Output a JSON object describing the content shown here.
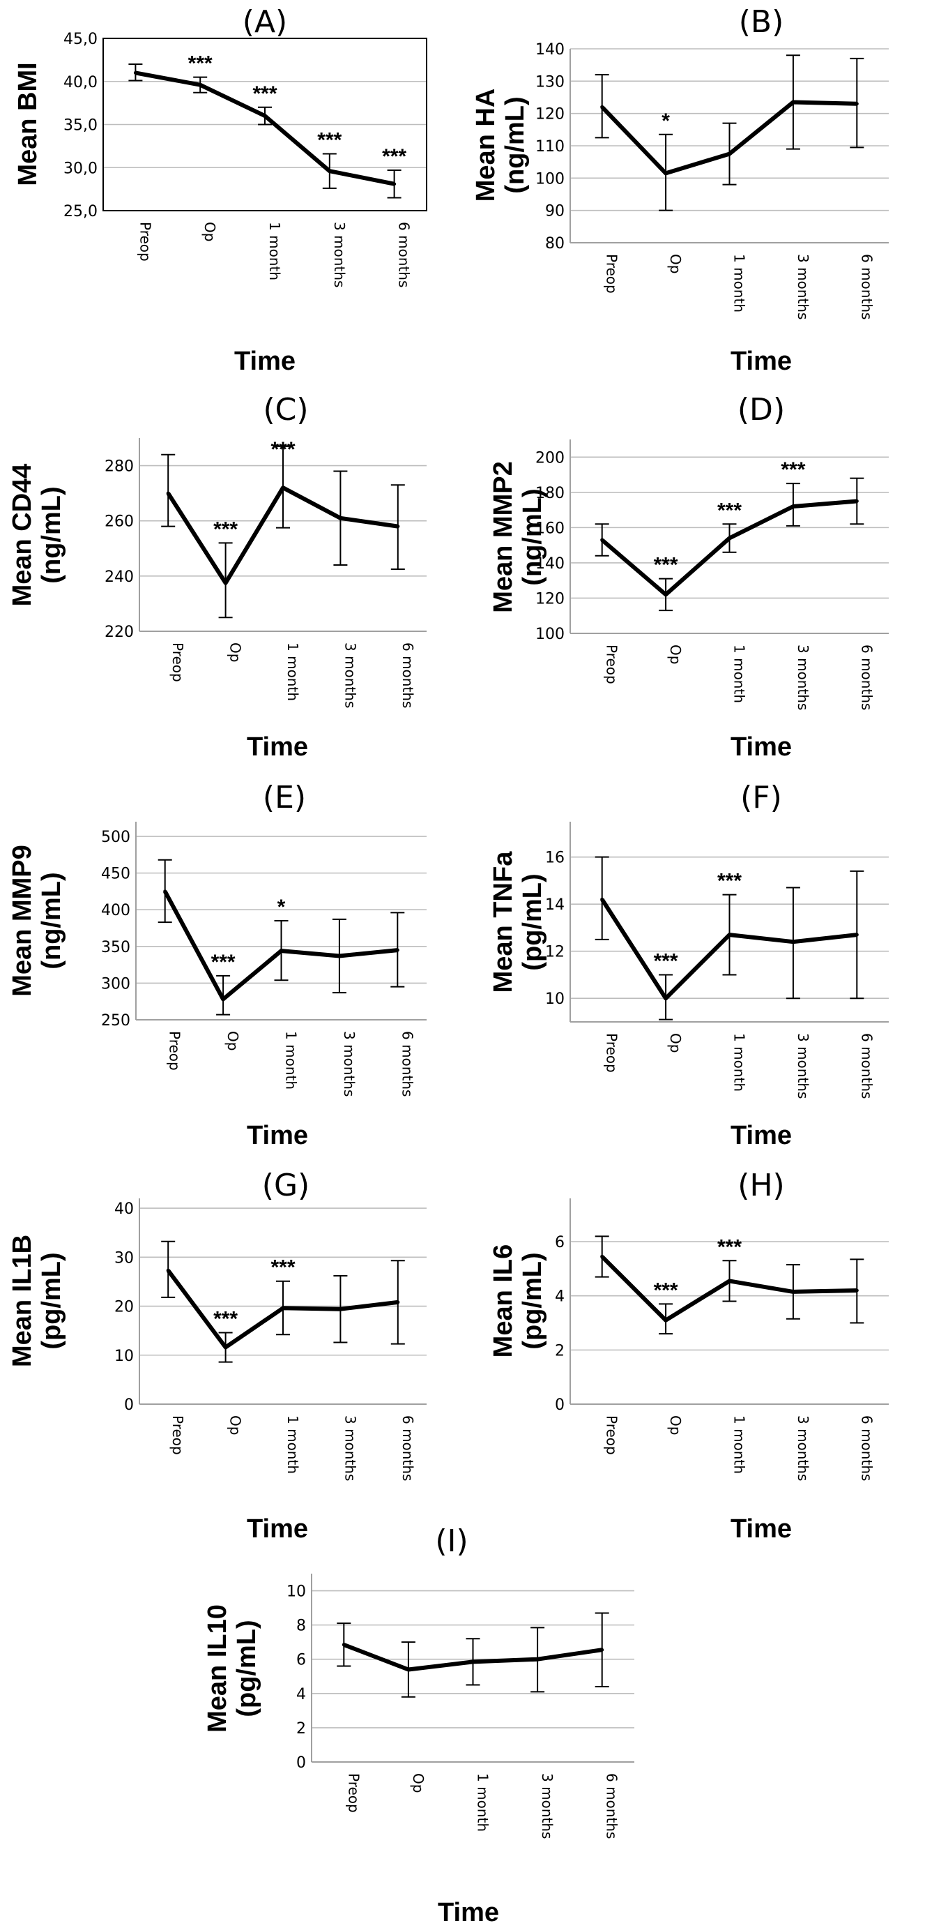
{
  "categories": [
    "Preop",
    "Op",
    "1 month",
    "3 months",
    "6 months"
  ],
  "xlabel": "Time",
  "chart_data": [
    {
      "type": "line",
      "panel": "(A)",
      "ylabel_lines": [
        "Mean BMI"
      ],
      "ylim": [
        25,
        45
      ],
      "yticks": [
        "25,0",
        "30,0",
        "35,0",
        "40,0",
        "45,0"
      ],
      "frame": true,
      "categories": [
        "Preop",
        "Op",
        "1 month",
        "3 months",
        "6 months"
      ],
      "values": [
        41.0,
        39.6,
        36.0,
        29.6,
        28.1
      ],
      "err_low": [
        40.1,
        38.7,
        35.0,
        27.6,
        26.5
      ],
      "err_high": [
        42.0,
        40.5,
        37.0,
        31.6,
        29.7
      ],
      "significance": [
        "",
        "***",
        "***",
        "***",
        "***"
      ]
    },
    {
      "type": "line",
      "panel": "(B)",
      "ylabel_lines": [
        "Mean HA",
        "(ng/mL)"
      ],
      "ylim": [
        80,
        140
      ],
      "yticks": [
        "80",
        "90",
        "100",
        "110",
        "120",
        "130",
        "140"
      ],
      "frame": false,
      "categories": [
        "Preop",
        "Op",
        "1 month",
        "3 months",
        "6 months"
      ],
      "values": [
        122,
        101.5,
        107.5,
        123.5,
        123
      ],
      "err_low": [
        112.5,
        90,
        98,
        109,
        109.5
      ],
      "err_high": [
        132,
        113.5,
        117,
        138,
        137
      ],
      "significance": [
        "",
        "*",
        "",
        "",
        ""
      ]
    },
    {
      "type": "line",
      "panel": "(C)",
      "ylabel_lines": [
        "Mean CD44",
        "(ng/mL)"
      ],
      "ylim": [
        220,
        290
      ],
      "yticks": [
        "220",
        "240",
        "260",
        "280"
      ],
      "frame": false,
      "categories": [
        "Preop",
        "Op",
        "1 month",
        "3 months",
        "6 months"
      ],
      "values": [
        270,
        237.5,
        272,
        261,
        258
      ],
      "err_low": [
        258,
        225,
        257.5,
        244,
        242.5
      ],
      "err_high": [
        284,
        252,
        287,
        278,
        273
      ],
      "significance": [
        "",
        "***",
        "***",
        "",
        ""
      ]
    },
    {
      "type": "line",
      "panel": "(D)",
      "ylabel_lines": [
        "Mean MMP2",
        "(ng/mL)"
      ],
      "ylim": [
        100,
        210
      ],
      "yticks": [
        "100",
        "120",
        "140",
        "160",
        "180",
        "200"
      ],
      "frame": false,
      "categories": [
        "Preop",
        "Op",
        "1 month",
        "3 months",
        "6 months"
      ],
      "values": [
        153,
        122,
        154,
        172,
        175
      ],
      "err_low": [
        144,
        113,
        146,
        161,
        162
      ],
      "err_high": [
        162,
        131,
        162,
        185,
        188
      ],
      "significance": [
        "",
        "***",
        "***",
        "***",
        ""
      ]
    },
    {
      "type": "line",
      "panel": "(E)",
      "ylabel_lines": [
        "Mean MMP9",
        "(ng/mL)"
      ],
      "ylim": [
        250,
        520
      ],
      "yticks": [
        "250",
        "300",
        "350",
        "400",
        "450",
        "500"
      ],
      "frame": false,
      "categories": [
        "Preop",
        "Op",
        "1 month",
        "3 months",
        "6 months"
      ],
      "values": [
        425,
        278,
        344,
        337,
        345
      ],
      "err_low": [
        383,
        257,
        304,
        287,
        295
      ],
      "err_high": [
        468,
        310,
        385,
        387,
        396
      ],
      "significance": [
        "",
        "***",
        "*",
        "",
        ""
      ]
    },
    {
      "type": "line",
      "panel": "(F)",
      "ylabel_lines": [
        "Mean TNFa",
        "(pg/mL)"
      ],
      "ylim": [
        9,
        17.5
      ],
      "yticks": [
        "10",
        "12",
        "14",
        "16"
      ],
      "frame": false,
      "categories": [
        "Preop",
        "Op",
        "1 month",
        "3 months",
        "6 months"
      ],
      "values": [
        14.2,
        10.0,
        12.7,
        12.4,
        12.7
      ],
      "err_low": [
        12.5,
        9.1,
        11.0,
        10.0,
        10.0
      ],
      "err_high": [
        16.0,
        11.0,
        14.4,
        14.7,
        15.4
      ],
      "significance": [
        "",
        "***",
        "***",
        "",
        ""
      ]
    },
    {
      "type": "line",
      "panel": "(G)",
      "ylabel_lines": [
        "Mean IL1B",
        "(pg/mL)"
      ],
      "ylim": [
        0,
        42
      ],
      "yticks": [
        "0",
        "10",
        "20",
        "30",
        "40"
      ],
      "frame": false,
      "categories": [
        "Preop",
        "Op",
        "1 month",
        "3 months",
        "6 months"
      ],
      "values": [
        27.3,
        11.6,
        19.6,
        19.4,
        20.8
      ],
      "err_low": [
        21.8,
        8.6,
        14.2,
        12.6,
        12.3
      ],
      "err_high": [
        33.2,
        14.6,
        25.1,
        26.2,
        29.3
      ],
      "significance": [
        "",
        "***",
        "***",
        "",
        ""
      ]
    },
    {
      "type": "line",
      "panel": "(H)",
      "ylabel_lines": [
        "Mean IL6",
        "(pg/mL)"
      ],
      "ylim": [
        0,
        7.6
      ],
      "yticks": [
        "0",
        "2",
        "4",
        "6"
      ],
      "frame": false,
      "categories": [
        "Preop",
        "Op",
        "1 month",
        "3 months",
        "6 months"
      ],
      "values": [
        5.45,
        3.1,
        4.55,
        4.15,
        4.2
      ],
      "err_low": [
        4.7,
        2.6,
        3.8,
        3.15,
        3.0
      ],
      "err_high": [
        6.2,
        3.7,
        5.3,
        5.15,
        5.35
      ],
      "significance": [
        "",
        "***",
        "***",
        "",
        ""
      ]
    },
    {
      "type": "line",
      "panel": "(I)",
      "ylabel_lines": [
        "Mean IL10",
        "(pg/mL)"
      ],
      "ylim": [
        0,
        11
      ],
      "yticks": [
        "0",
        "2",
        "4",
        "6",
        "8",
        "10"
      ],
      "frame": false,
      "categories": [
        "Preop",
        "Op",
        "1 month",
        "3 months",
        "6 months"
      ],
      "values": [
        6.85,
        5.4,
        5.85,
        6.0,
        6.55
      ],
      "err_low": [
        5.6,
        3.8,
        4.5,
        4.1,
        4.4
      ],
      "err_high": [
        8.1,
        7.0,
        7.2,
        7.85,
        8.7
      ],
      "significance": [
        "",
        "",
        "",
        "",
        ""
      ]
    }
  ]
}
